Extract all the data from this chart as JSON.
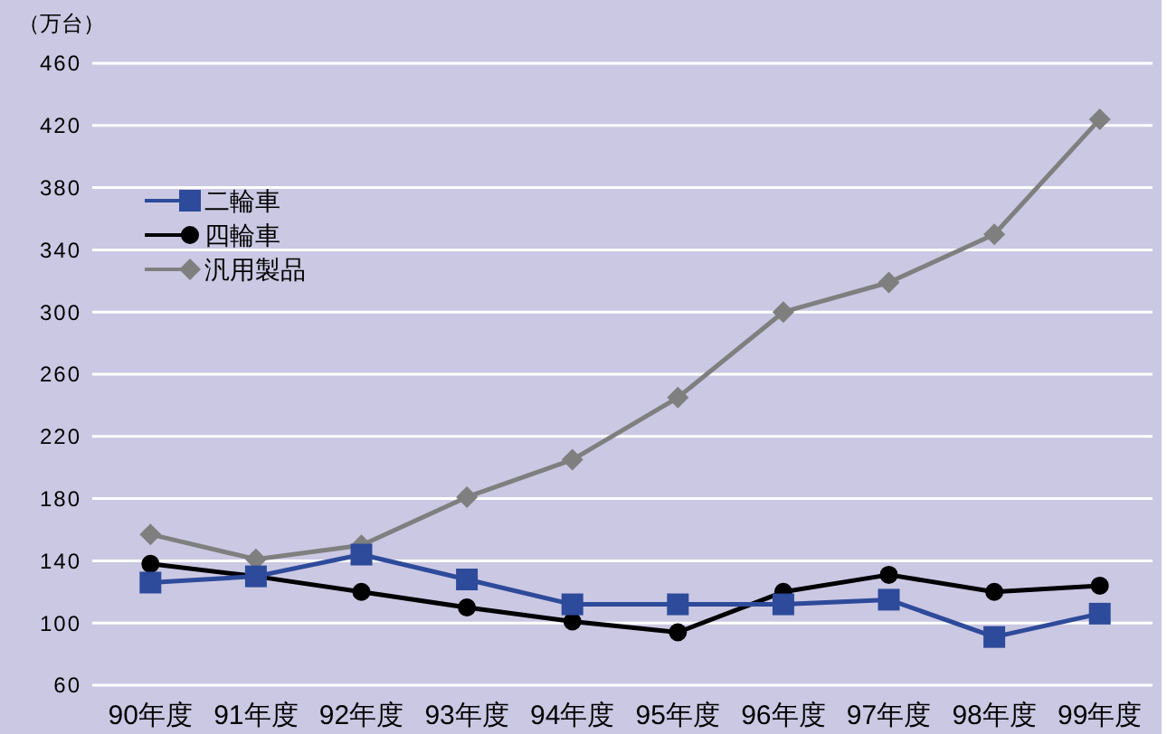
{
  "chart_data": {
    "type": "line",
    "ylabel": "（万台）",
    "categories": [
      "90年度",
      "91年度",
      "92年度",
      "93年度",
      "94年度",
      "95年度",
      "96年度",
      "97年度",
      "98年度",
      "99年度"
    ],
    "series": [
      {
        "name": "二輪車",
        "color": "#2e4a9a",
        "marker": "square",
        "values": [
          126,
          130,
          144,
          128,
          112,
          112,
          112,
          115,
          91,
          106
        ]
      },
      {
        "name": "四輪車",
        "color": "#000000",
        "marker": "circle",
        "values": [
          138,
          130,
          120,
          110,
          101,
          94,
          120,
          131,
          120,
          124
        ]
      },
      {
        "name": "汎用製品",
        "color": "#7f7f7f",
        "marker": "diamond",
        "values": [
          157,
          141,
          150,
          181,
          205,
          245,
          300,
          319,
          350,
          424
        ]
      }
    ],
    "ylim": [
      60,
      460
    ],
    "yticks": [
      60,
      100,
      140,
      180,
      220,
      260,
      300,
      340,
      380,
      420,
      460
    ],
    "grid": "y",
    "legend": "top left"
  }
}
